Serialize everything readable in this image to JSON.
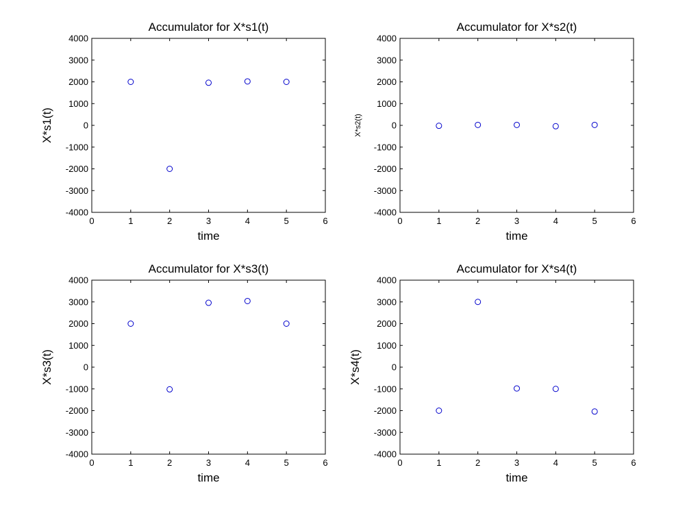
{
  "colors": {
    "marker": "#0000cc",
    "axes": "#000000",
    "background": "#ffffff"
  },
  "chart_data": [
    {
      "type": "scatter",
      "title": "Accumulator for X*s1(t)",
      "xlabel": "time",
      "ylabel": "X*s1(t)",
      "xlim": [
        0,
        6
      ],
      "ylim": [
        -4000,
        4000
      ],
      "xticks": [
        "0",
        "1",
        "2",
        "3",
        "4",
        "5",
        "6"
      ],
      "yticks": [
        "4000",
        "3000",
        "2000",
        "1000",
        "0",
        "-1000",
        "-2000",
        "-3000",
        "-4000"
      ],
      "grid": false,
      "marker": "circle",
      "x": [
        1,
        2,
        3,
        4,
        5
      ],
      "y": [
        2000,
        -2000,
        1960,
        2020,
        2000
      ]
    },
    {
      "type": "scatter",
      "title": "Accumulator for X*s2(t)",
      "xlabel": "time",
      "ylabel": "X*s2(t)",
      "xlim": [
        0,
        6
      ],
      "ylim": [
        -4000,
        4000
      ],
      "xticks": [
        "0",
        "1",
        "2",
        "3",
        "4",
        "5",
        "6"
      ],
      "yticks": [
        "4000",
        "3000",
        "2000",
        "1000",
        "0",
        "-1000",
        "-2000",
        "-3000",
        "-4000"
      ],
      "grid": false,
      "marker": "circle",
      "x": [
        1,
        2,
        3,
        4,
        5
      ],
      "y": [
        -20,
        20,
        20,
        -40,
        20
      ]
    },
    {
      "type": "scatter",
      "title": "Accumulator for X*s3(t)",
      "xlabel": "time",
      "ylabel": "X*s3(t)",
      "xlim": [
        0,
        6
      ],
      "ylim": [
        -4000,
        4000
      ],
      "xticks": [
        "0",
        "1",
        "2",
        "3",
        "4",
        "5",
        "6"
      ],
      "yticks": [
        "4000",
        "3000",
        "2000",
        "1000",
        "0",
        "-1000",
        "-2000",
        "-3000",
        "-4000"
      ],
      "grid": false,
      "marker": "circle",
      "x": [
        1,
        2,
        3,
        4,
        5
      ],
      "y": [
        2000,
        -1020,
        2960,
        3040,
        2000
      ]
    },
    {
      "type": "scatter",
      "title": "Accumulator for X*s4(t)",
      "xlabel": "time",
      "ylabel": "X*s4(t)",
      "xlim": [
        0,
        6
      ],
      "ylim": [
        -4000,
        4000
      ],
      "xticks": [
        "0",
        "1",
        "2",
        "3",
        "4",
        "5",
        "6"
      ],
      "yticks": [
        "4000",
        "3000",
        "2000",
        "1000",
        "0",
        "-1000",
        "-2000",
        "-3000",
        "-4000"
      ],
      "grid": false,
      "marker": "circle",
      "x": [
        1,
        2,
        3,
        4,
        5
      ],
      "y": [
        -2000,
        3000,
        -980,
        -1000,
        -2040
      ]
    }
  ]
}
